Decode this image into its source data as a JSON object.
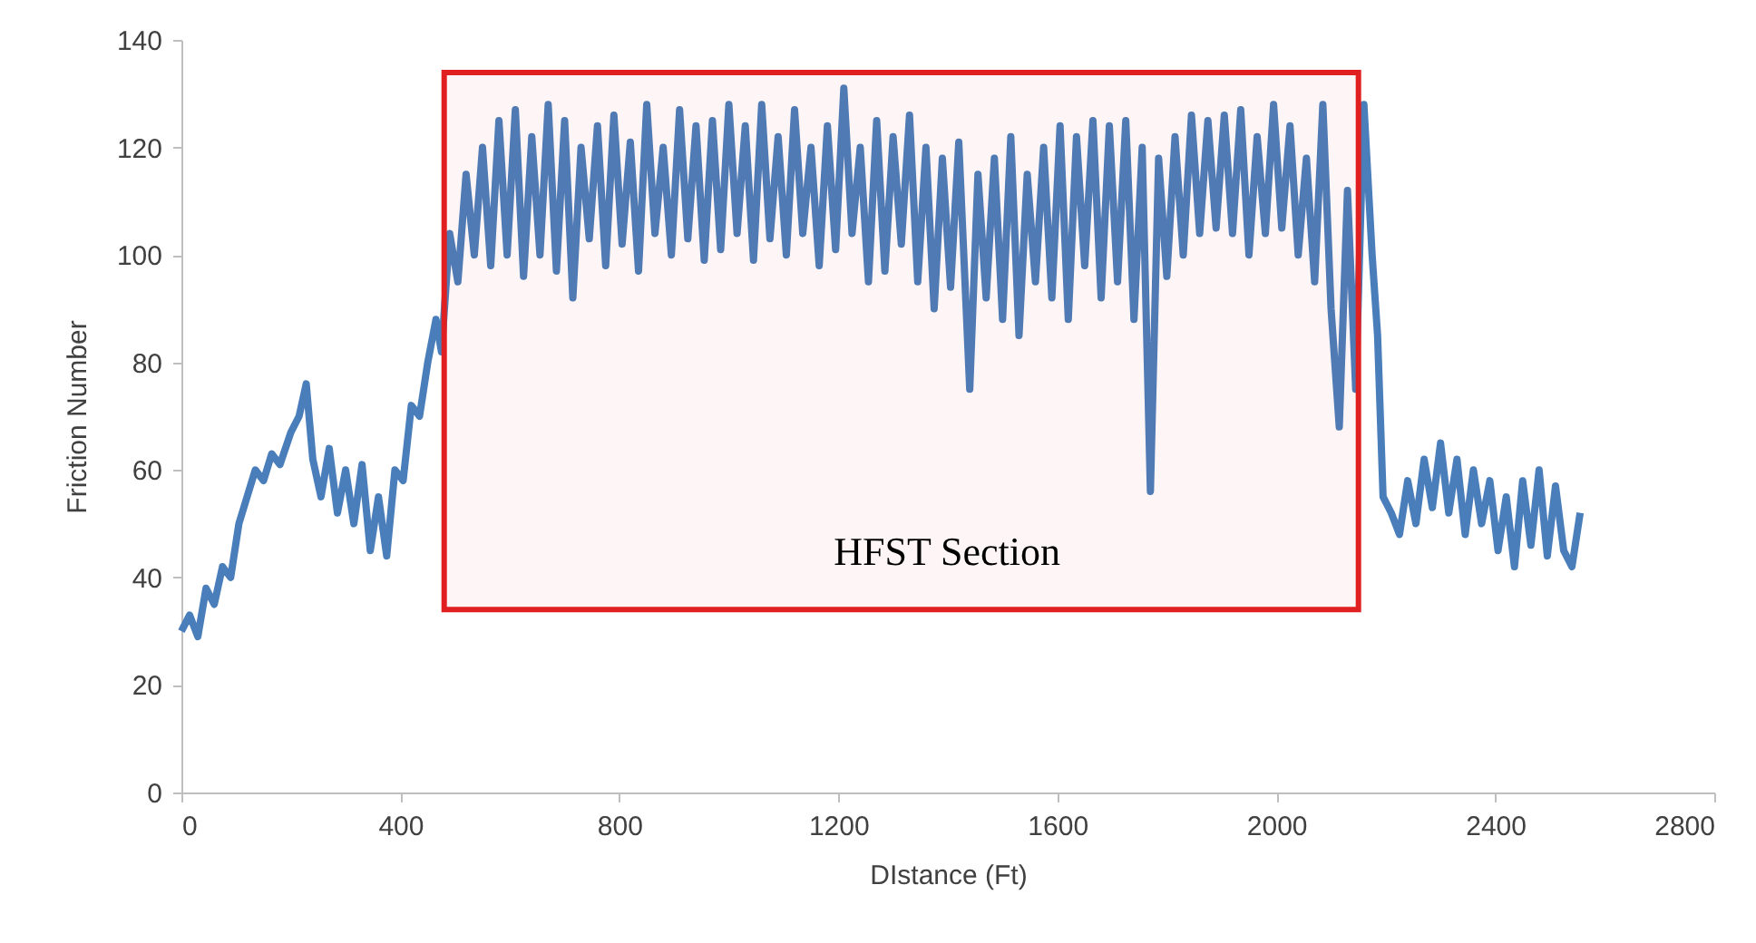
{
  "chart_data": {
    "type": "line",
    "xlabel": "DIstance (Ft)",
    "ylabel": "Friction Number",
    "xlim": [
      0,
      2800
    ],
    "xticks": [
      0,
      400,
      800,
      1200,
      1600,
      2000,
      2400,
      2800
    ],
    "ylim": [
      0,
      140
    ],
    "yticks": [
      0,
      20,
      40,
      60,
      80,
      100,
      120,
      140
    ],
    "grid": false,
    "bands": [
      {
        "axis": "x",
        "from": 480,
        "to": 2150,
        "label": "HFST Section",
        "color": "#e02020"
      }
    ],
    "series": [
      {
        "color": "#4a7ebb",
        "x": [
          0,
          15,
          30,
          45,
          60,
          75,
          90,
          105,
          120,
          135,
          150,
          165,
          180,
          200,
          215,
          228,
          240,
          255,
          270,
          285,
          300,
          315,
          330,
          345,
          360,
          375,
          390,
          405,
          420,
          435,
          450,
          465,
          475,
          490,
          505,
          520,
          535,
          550,
          565,
          580,
          595,
          610,
          625,
          640,
          655,
          670,
          685,
          700,
          715,
          730,
          745,
          760,
          775,
          790,
          805,
          820,
          835,
          850,
          865,
          880,
          895,
          910,
          925,
          940,
          955,
          970,
          985,
          1000,
          1015,
          1030,
          1045,
          1060,
          1075,
          1090,
          1105,
          1120,
          1135,
          1150,
          1165,
          1180,
          1195,
          1210,
          1225,
          1240,
          1255,
          1270,
          1285,
          1300,
          1315,
          1330,
          1345,
          1360,
          1375,
          1390,
          1405,
          1420,
          1440,
          1455,
          1470,
          1485,
          1500,
          1515,
          1530,
          1545,
          1560,
          1575,
          1590,
          1605,
          1620,
          1635,
          1650,
          1665,
          1680,
          1695,
          1710,
          1725,
          1740,
          1755,
          1770,
          1785,
          1800,
          1815,
          1830,
          1845,
          1860,
          1875,
          1890,
          1905,
          1920,
          1935,
          1950,
          1965,
          1980,
          1995,
          2010,
          2025,
          2040,
          2055,
          2070,
          2085,
          2100,
          2115,
          2130,
          2145,
          2160,
          2175,
          2185,
          2195,
          2210,
          2225,
          2240,
          2255,
          2270,
          2285,
          2300,
          2315,
          2330,
          2345,
          2360,
          2375,
          2390,
          2405,
          2420,
          2435,
          2450,
          2465,
          2480,
          2495,
          2510,
          2525,
          2540,
          2555
        ],
        "values": [
          30,
          33,
          29,
          38,
          35,
          42,
          40,
          50,
          55,
          60,
          58,
          63,
          61,
          67,
          70,
          76,
          62,
          55,
          64,
          52,
          60,
          50,
          61,
          45,
          55,
          44,
          60,
          58,
          72,
          70,
          80,
          88,
          82,
          104,
          95,
          115,
          100,
          120,
          98,
          125,
          100,
          127,
          96,
          122,
          100,
          128,
          97,
          125,
          92,
          120,
          103,
          124,
          98,
          126,
          102,
          121,
          97,
          128,
          104,
          120,
          100,
          127,
          103,
          124,
          99,
          125,
          101,
          128,
          104,
          124,
          99,
          128,
          103,
          122,
          100,
          127,
          104,
          120,
          98,
          124,
          101,
          131,
          104,
          120,
          95,
          125,
          97,
          122,
          102,
          126,
          95,
          120,
          90,
          118,
          94,
          121,
          75,
          115,
          92,
          118,
          88,
          122,
          85,
          115,
          95,
          120,
          92,
          124,
          88,
          122,
          98,
          125,
          92,
          124,
          95,
          125,
          88,
          120,
          56,
          118,
          96,
          122,
          100,
          126,
          104,
          125,
          105,
          126,
          104,
          127,
          100,
          122,
          104,
          128,
          105,
          124,
          100,
          118,
          95,
          128,
          90,
          68,
          112,
          75,
          128,
          100,
          85,
          55,
          52,
          48,
          58,
          50,
          62,
          53,
          65,
          52,
          62,
          48,
          60,
          50,
          58,
          45,
          55,
          42,
          58,
          46,
          60,
          44,
          57,
          45,
          42,
          52
        ]
      }
    ]
  }
}
